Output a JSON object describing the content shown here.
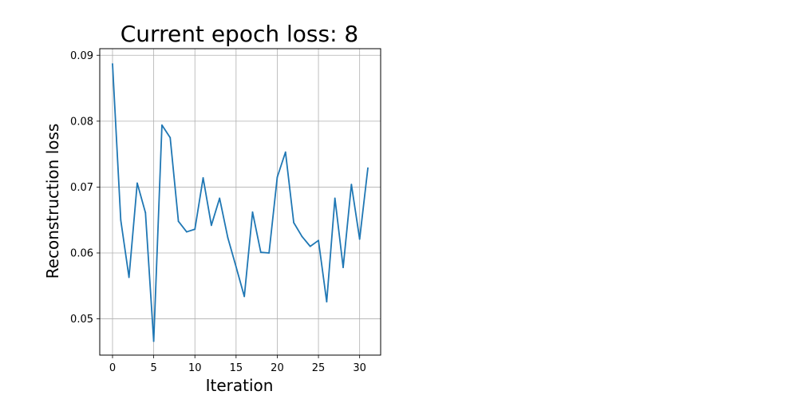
{
  "chart_data": {
    "type": "line",
    "title": "Current epoch loss: 8",
    "xlabel": "Iteration",
    "ylabel": "Reconstruction loss",
    "xlim": [
      -1.55,
      32.55
    ],
    "ylim": [
      0.0445,
      0.091
    ],
    "xticks": [
      0,
      5,
      10,
      15,
      20,
      25,
      30
    ],
    "xtick_labels": [
      "0",
      "5",
      "10",
      "15",
      "20",
      "25",
      "30"
    ],
    "yticks": [
      0.05,
      0.06,
      0.07,
      0.08,
      0.09
    ],
    "ytick_labels": [
      "0.05",
      "0.06",
      "0.07",
      "0.08",
      "0.09"
    ],
    "grid": true,
    "legend": "none",
    "series": [
      {
        "color": "#1f77b4",
        "x": [
          0,
          1,
          2,
          3,
          4,
          5,
          6,
          7,
          8,
          9,
          10,
          11,
          12,
          13,
          14,
          15,
          16,
          17,
          18,
          19,
          20,
          21,
          22,
          23,
          24,
          25,
          26,
          27,
          28,
          29,
          30,
          31
        ],
        "y": [
          0.0887,
          0.065,
          0.0563,
          0.0706,
          0.0661,
          0.0466,
          0.0794,
          0.0775,
          0.0648,
          0.0632,
          0.0636,
          0.0714,
          0.0642,
          0.0683,
          0.0623,
          0.0579,
          0.0534,
          0.0662,
          0.0601,
          0.06,
          0.0715,
          0.0753,
          0.0646,
          0.0625,
          0.061,
          0.0619,
          0.0526,
          0.0683,
          0.0578,
          0.0704,
          0.0621,
          0.0729
        ]
      }
    ]
  }
}
